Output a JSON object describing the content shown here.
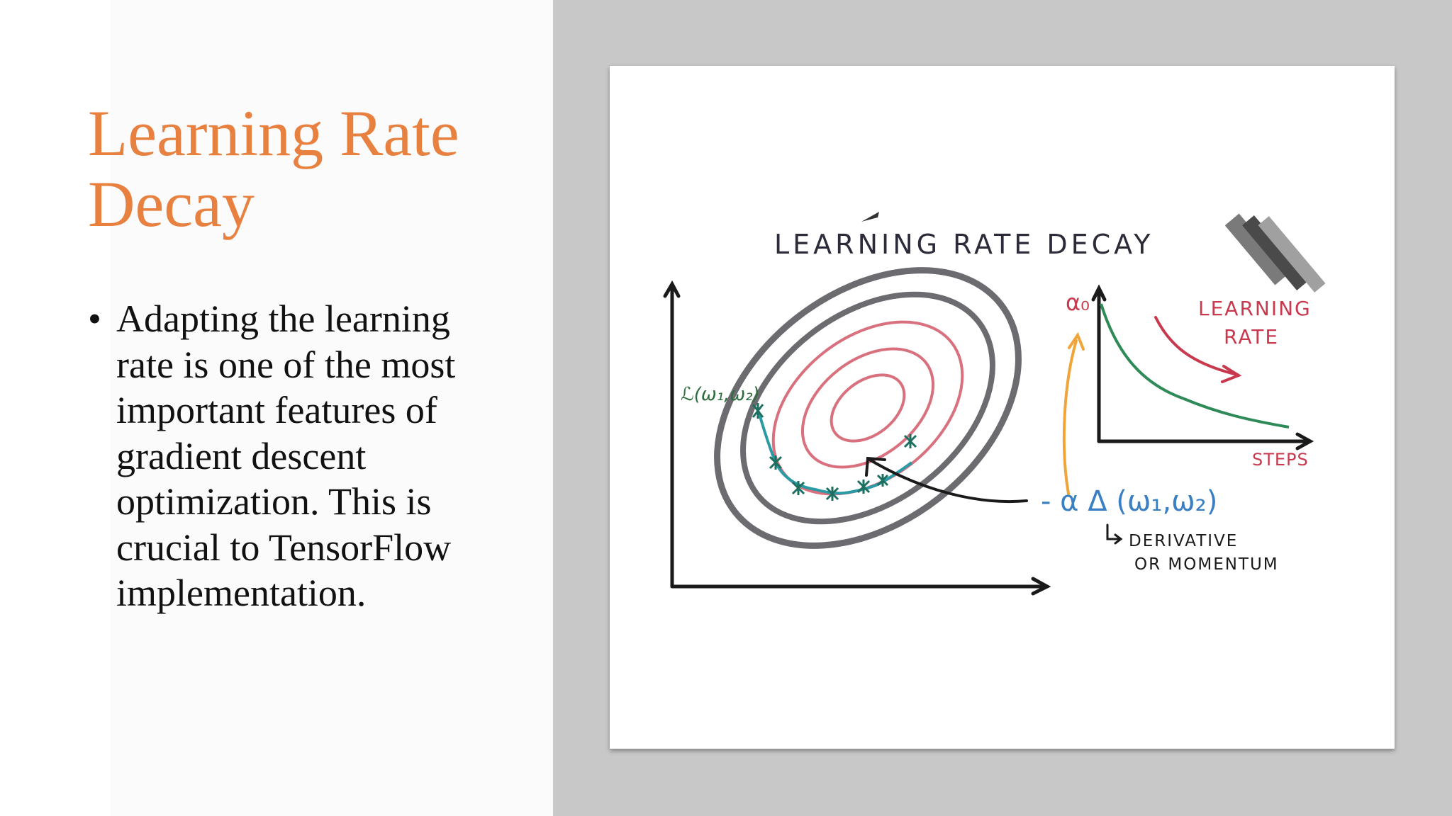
{
  "slide": {
    "title": "Learning Rate Decay",
    "bullet_points": [
      "Adapting the learning rate is one of the most important features of gradient descent optimization. This is crucial to TensorFlow implementation."
    ]
  },
  "figure": {
    "heading": "LEARNING RATE DECAY",
    "loss_label": "ℒ(ω₁,ω₂)",
    "alpha0_label": "α₀",
    "curve_label_line1": "LEARNING",
    "curve_label_line2": "RATE",
    "steps_label": "STEPS",
    "update_formula": "- α Δ (ω₁,ω₂)",
    "note_line1": "DERIVATIVE",
    "note_line2": "OR MOMENTUM"
  },
  "colors": {
    "title": "#e8813f",
    "ellipse_outer": "#6b6b70",
    "ellipse_inner": "#d9707e",
    "path": "#2a9aa5",
    "decay_curve": "#2e8a57",
    "annotation_red": "#c8394e",
    "annotation_orange": "#f0a53a"
  }
}
